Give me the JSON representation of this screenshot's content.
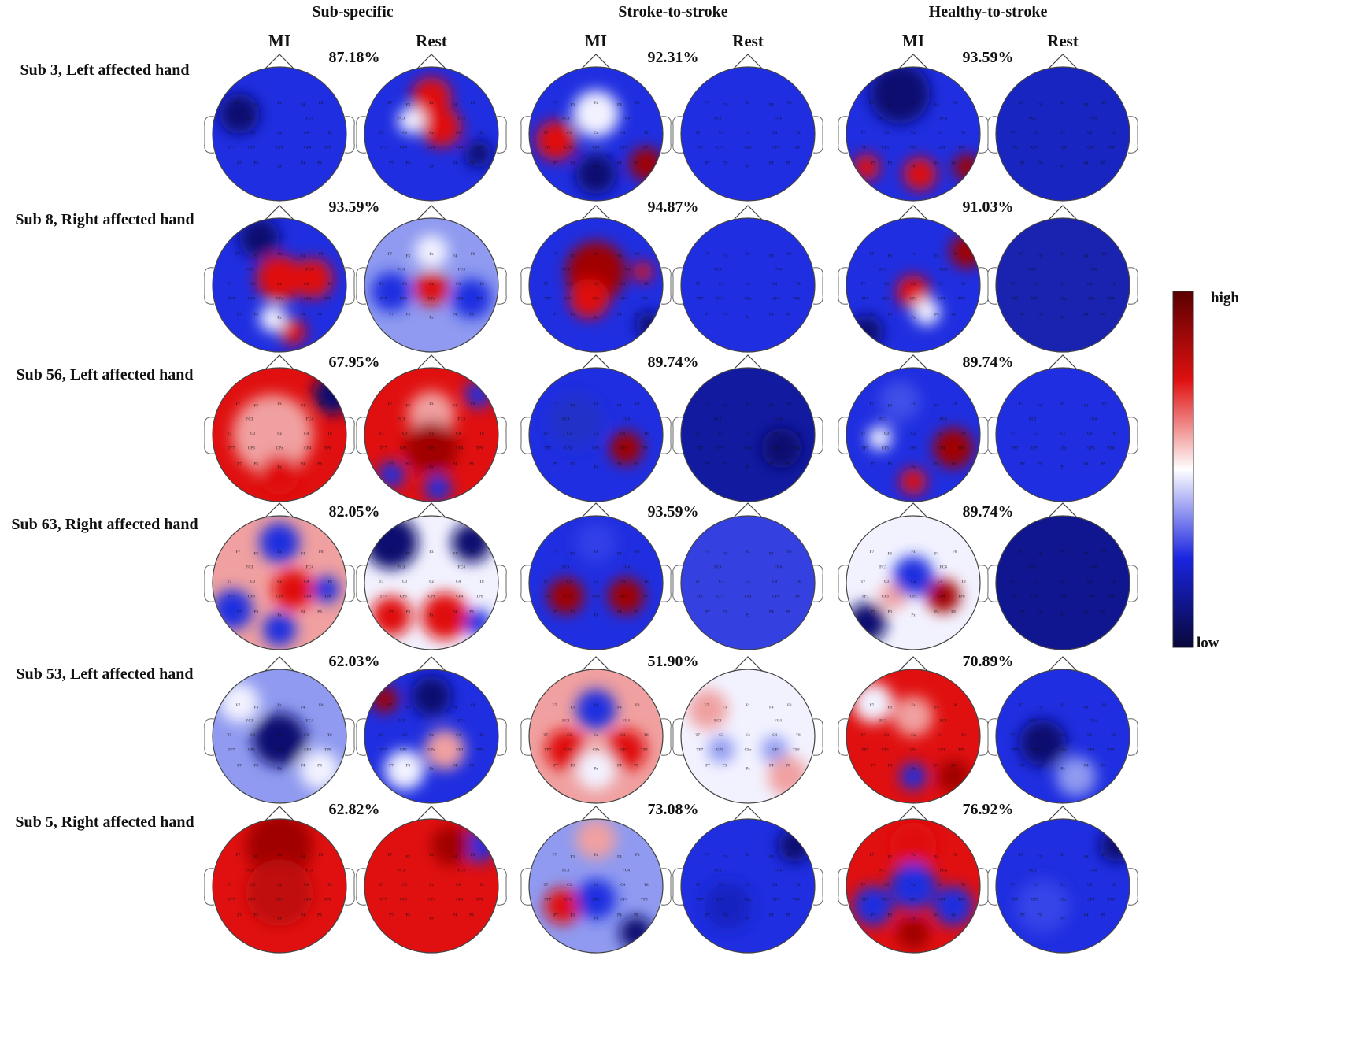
{
  "groups": [
    {
      "title": "Sub-specific"
    },
    {
      "title": "Stroke-to-stroke"
    },
    {
      "title": "Healthy-to-stroke"
    }
  ],
  "conditions": [
    "MI",
    "Rest"
  ],
  "rows": [
    {
      "label": "Sub 3, Left affected hand",
      "accuracies": [
        "87.18%",
        "92.31%",
        "93.59%"
      ]
    },
    {
      "label": "Sub 8, Right affected hand",
      "accuracies": [
        "93.59%",
        "94.87%",
        "91.03%"
      ]
    },
    {
      "label": "Sub 56, Left affected hand",
      "accuracies": [
        "67.95%",
        "89.74%",
        "89.74%"
      ]
    },
    {
      "label": "Sub 63, Right affected hand",
      "accuracies": [
        "82.05%",
        "93.59%",
        "89.74%"
      ]
    },
    {
      "label": "Sub 53, Left affected hand",
      "accuracies": [
        "62.03%",
        "51.90%",
        "70.89%"
      ]
    },
    {
      "label": "Sub 5, Right affected hand",
      "accuracies": [
        "62.82%",
        "73.08%",
        "76.92%"
      ]
    }
  ],
  "electrodes": [
    "F7",
    "F3",
    "Fz",
    "F4",
    "F8",
    "FC3",
    "FC4",
    "T7",
    "C3",
    "Cz",
    "C4",
    "T8",
    "TP7",
    "CP3",
    "CPz",
    "CP4",
    "TP8",
    "P7",
    "P3",
    "Pz",
    "P4",
    "P8"
  ],
  "colorbar": {
    "high_label": "high",
    "low_label": "low",
    "colors": [
      "#08083a",
      "#1a24e0",
      "#ffffff",
      "#e01010",
      "#5a0000"
    ]
  }
}
